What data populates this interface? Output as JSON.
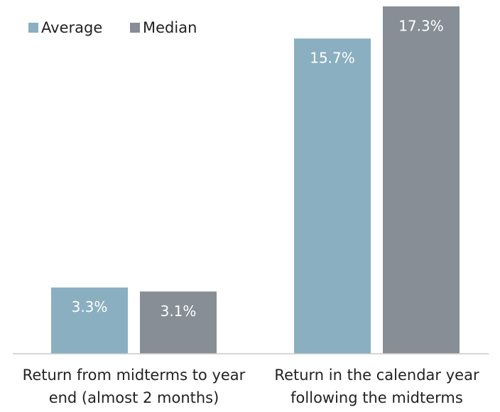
{
  "chart_data": {
    "type": "bar",
    "categories": [
      "Return from midterms to year end (almost 2 months)",
      "Return in the calendar year following the midterms"
    ],
    "series": [
      {
        "name": "Average",
        "color": "#8aafc1",
        "values": [
          3.3,
          15.7
        ],
        "value_labels": [
          "3.3%",
          "15.7%"
        ]
      },
      {
        "name": "Median",
        "color": "#878e96",
        "values": [
          3.1,
          17.3
        ],
        "value_labels": [
          "3.1%",
          "17.3%"
        ]
      }
    ],
    "legend": "top-left"
  }
}
